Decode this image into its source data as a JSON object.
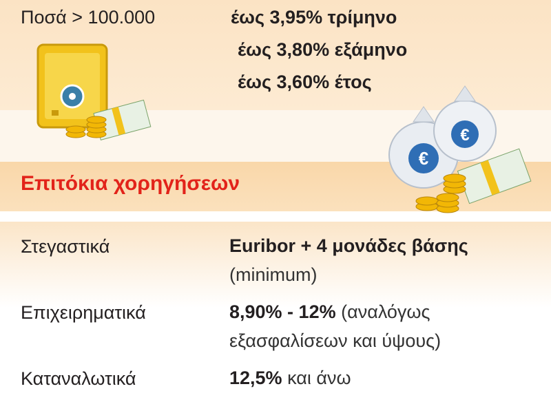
{
  "deposits": {
    "amount_label": "Ποσά > 100.000",
    "rates": [
      "έως 3,95% τρίμηνο",
      "έως 3,80% εξάμηνο",
      "έως 3,60% έτος"
    ]
  },
  "loans": {
    "title": "Επιτόκια χορηγήσεων",
    "rows": [
      {
        "label": "Στεγαστικά",
        "value": "Euribor + 4 μονάδες βάσης",
        "note": "(minimum)"
      },
      {
        "label": "Επιχειρηματικά",
        "value": "8,90% - 12%",
        "note": "(αναλόγως εξασφαλίσεων και ύψους)"
      },
      {
        "label": "Καταναλωτικά",
        "value": "12,5%",
        "note": "και άνω"
      }
    ]
  }
}
